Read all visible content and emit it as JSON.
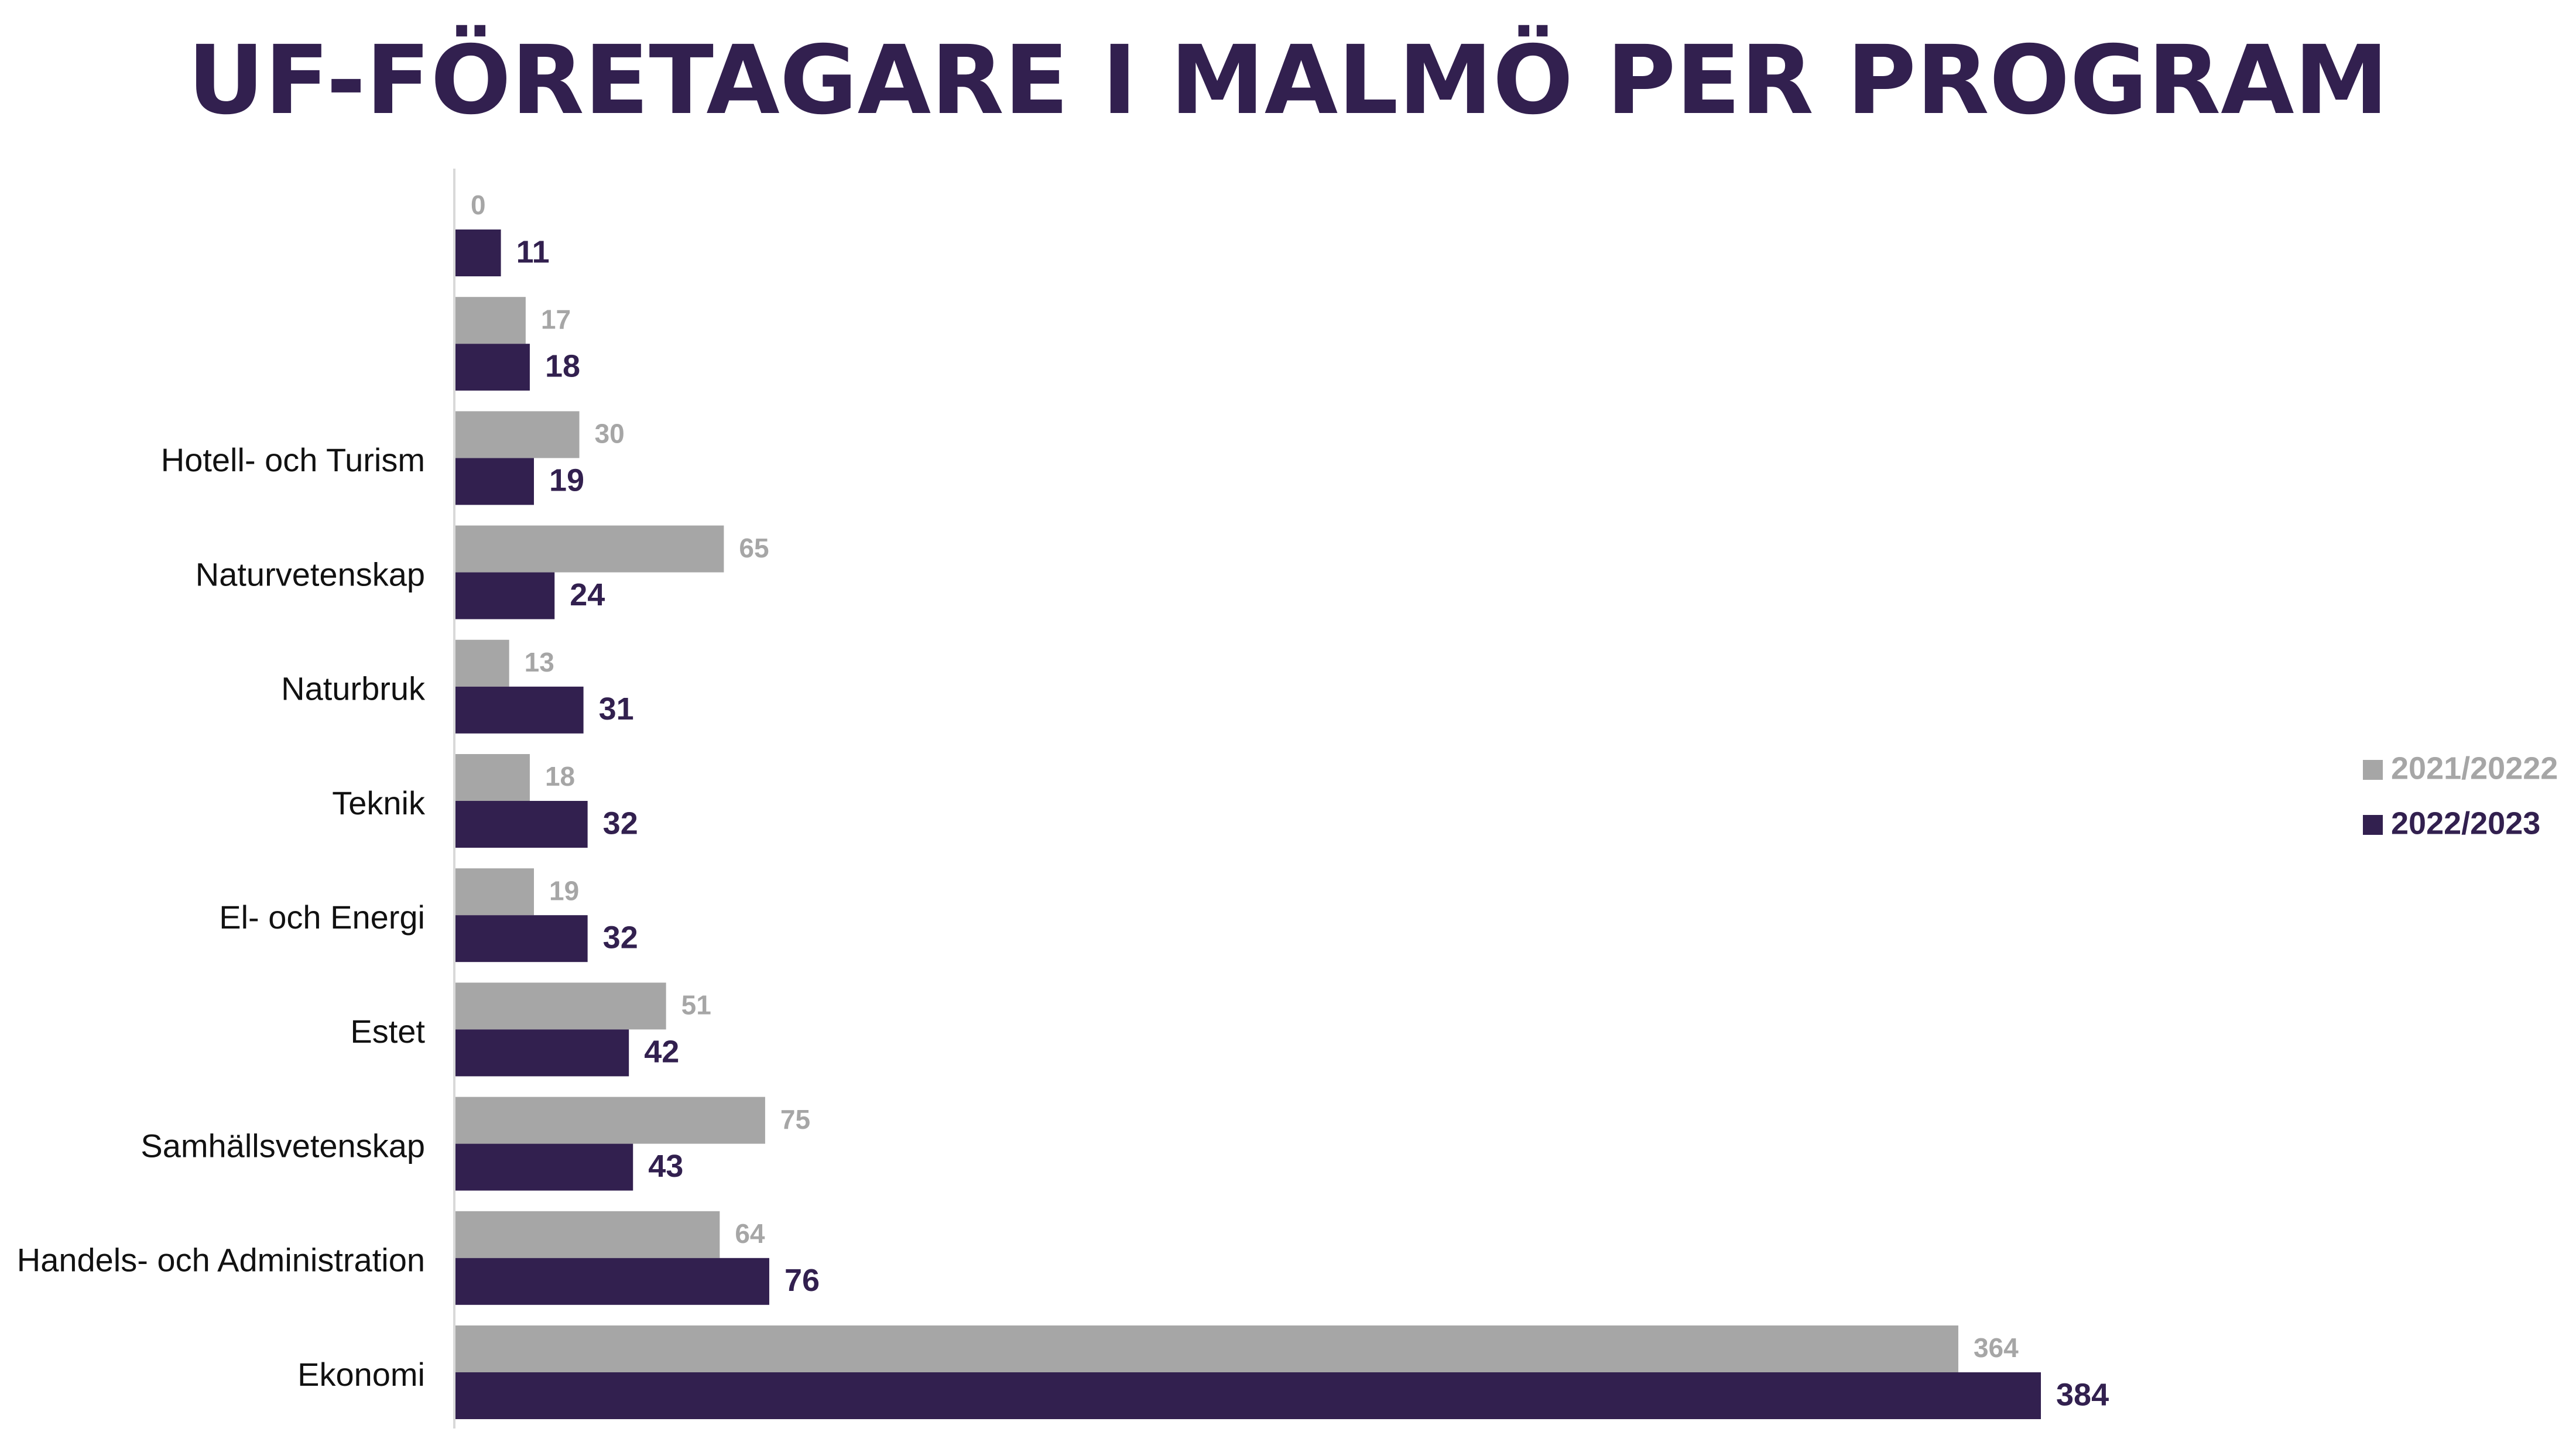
{
  "chart_data": {
    "type": "bar",
    "orientation": "horizontal",
    "title": "UF-FÖRETAGARE I MALMÖ PER PROGRAM",
    "categories": [
      "",
      "",
      "Hotell- och Turism",
      "Naturvetenskap",
      "Naturbruk",
      "Teknik",
      "El- och Energi",
      "Estet",
      "Samhällsvetenskap",
      "Handels- och Administration",
      "Ekonomi"
    ],
    "series": [
      {
        "name": "2021/20222",
        "color": "#a6a6a6",
        "values": [
          0,
          17,
          30,
          65,
          13,
          18,
          19,
          51,
          75,
          64,
          364
        ]
      },
      {
        "name": "2022/2023",
        "color": "#32204f",
        "values": [
          11,
          18,
          19,
          24,
          31,
          32,
          32,
          42,
          43,
          76,
          384
        ]
      }
    ],
    "xlim": [
      0,
      384
    ],
    "grid": false,
    "data_labels": true,
    "legend_position": "right"
  }
}
